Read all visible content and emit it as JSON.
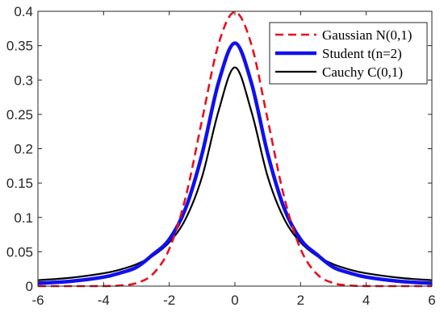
{
  "chart_data": {
    "type": "line",
    "title": "",
    "xlabel": "",
    "ylabel": "",
    "xlim": [
      -6,
      6
    ],
    "ylim": [
      0,
      0.4
    ],
    "xticks": [
      -6,
      -4,
      -2,
      0,
      2,
      4,
      6
    ],
    "yticks": [
      0,
      0.05,
      0.1,
      0.15,
      0.2,
      0.25,
      0.3,
      0.35,
      0.4
    ],
    "xtick_labels": [
      "-6",
      "-4",
      "-2",
      "0",
      "2",
      "4",
      "6"
    ],
    "ytick_labels": [
      "0",
      "0.05",
      "0.1",
      "0.15",
      "0.2",
      "0.25",
      "0.3",
      "0.35",
      "0.4"
    ],
    "grid": false,
    "legend_position": "top-right",
    "series": [
      {
        "name": "Gaussian N(0,1)",
        "color": "#e8101e",
        "style": "dashed",
        "x": [
          -6,
          -5,
          -4,
          -3.5,
          -3,
          -2.5,
          -2,
          -1.5,
          -1,
          -0.5,
          0,
          0.5,
          1,
          1.5,
          2,
          2.5,
          3,
          3.5,
          4,
          5,
          6
        ],
        "y": [
          0.0,
          0.0,
          0.0001,
          0.0009,
          0.0044,
          0.0175,
          0.054,
          0.1295,
          0.242,
          0.3521,
          0.3989,
          0.3521,
          0.242,
          0.1295,
          0.054,
          0.0175,
          0.0044,
          0.0009,
          0.0001,
          0.0,
          0.0
        ]
      },
      {
        "name": "Student t(n=2)",
        "color": "#1010ee",
        "style": "solid",
        "x": [
          -6,
          -5,
          -4,
          -3.5,
          -3,
          -2.5,
          -2,
          -1.5,
          -1,
          -0.5,
          0,
          0.5,
          1,
          1.5,
          2,
          2.5,
          3,
          3.5,
          4,
          5,
          6
        ],
        "y": [
          0.0042,
          0.0071,
          0.0131,
          0.0191,
          0.0274,
          0.0459,
          0.068,
          0.1134,
          0.1925,
          0.2962,
          0.3536,
          0.2962,
          0.1925,
          0.1134,
          0.068,
          0.0459,
          0.0274,
          0.0191,
          0.0131,
          0.0071,
          0.0042
        ]
      },
      {
        "name": "Cauchy C(0,1)",
        "color": "#000000",
        "style": "solid",
        "x": [
          -6,
          -5,
          -4,
          -3.5,
          -3,
          -2.5,
          -2,
          -1.5,
          -1,
          -0.5,
          0,
          0.5,
          1,
          1.5,
          2,
          2.5,
          3,
          3.5,
          4,
          5,
          6
        ],
        "y": [
          0.0086,
          0.0122,
          0.0187,
          0.024,
          0.0318,
          0.0439,
          0.0637,
          0.0979,
          0.1592,
          0.2546,
          0.3183,
          0.2546,
          0.1592,
          0.0979,
          0.0637,
          0.0439,
          0.0318,
          0.024,
          0.0187,
          0.0122,
          0.0086
        ]
      }
    ]
  }
}
